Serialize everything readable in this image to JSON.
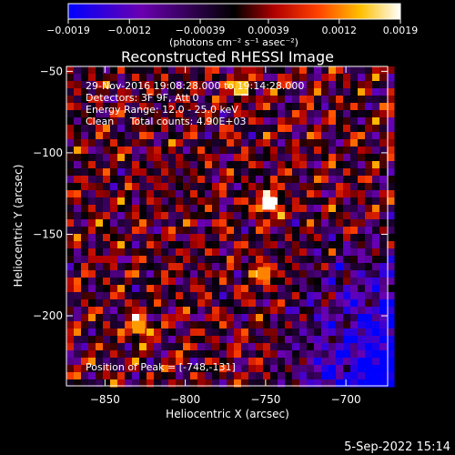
{
  "chart_data": {
    "type": "heatmap",
    "title": "Reconstructed RHESSI Image",
    "xlabel": "Heliocentric X (arcsec)",
    "ylabel": "Heliocentric Y (arcsec)",
    "xlim": [
      -874,
      -674
    ],
    "ylim": [
      -243,
      -47
    ],
    "xticks": [
      -850,
      -800,
      -750,
      -700
    ],
    "xtick_labels": [
      "−850",
      "−800",
      "−750",
      "−700"
    ],
    "yticks": [
      -50,
      -100,
      -150,
      -200
    ],
    "ytick_labels": [
      "−50",
      "−100",
      "−150",
      "−200"
    ],
    "colorbar": {
      "range": [
        -0.0019,
        0.0019
      ],
      "ticks": [
        -0.0019,
        -0.0012,
        -0.00039,
        0.00039,
        0.0012,
        0.0019
      ],
      "tick_labels": [
        "−0.0019",
        "−0.0012",
        "−0.00039",
        "0.00039",
        "0.0012",
        "0.0019"
      ],
      "unit_label": "(photons cm⁻² s⁻¹ asec⁻²)",
      "colors": [
        "#0000ff",
        "#6a00b0",
        "#000000",
        "#b00000",
        "#ff4000",
        "#ffc000",
        "#ffffff"
      ]
    },
    "annotations": [
      "29-Nov-2016 19:08:28.000 to 19:14:28.000",
      "Detectors: 3F 9F, Att 0",
      "Energy Range: 12.0 - 25.0 keV",
      "Clean     Total counts: 4.90E+03"
    ],
    "peak_label": "Position of Peak = [-748,-131]",
    "peak": {
      "x": -748,
      "y": -131
    },
    "bright_sources": [
      {
        "x": -748,
        "y": -131,
        "value": 0.0019
      },
      {
        "x": -765,
        "y": -60,
        "value": 0.0015
      },
      {
        "x": -829,
        "y": -207,
        "value": 0.0013
      },
      {
        "x": -751,
        "y": -174,
        "value": 0.0012
      }
    ]
  },
  "footer": {
    "timestamp": "5-Sep-2022 15:14"
  }
}
